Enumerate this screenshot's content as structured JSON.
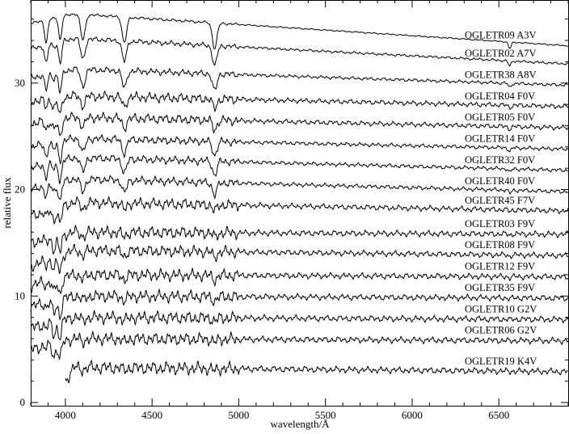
{
  "chart_data": {
    "type": "line",
    "title": "",
    "xlabel": "wavelength/Å",
    "ylabel": "relative flux",
    "xlim": [
      3800,
      6900
    ],
    "ylim": [
      -0.3,
      37.8
    ],
    "grid": false,
    "legend": "none",
    "x_major_ticks": [
      4000,
      4500,
      5000,
      5500,
      6000,
      6500
    ],
    "x_tick_labels": [
      "4000",
      "4500",
      "5000",
      "5500",
      "6000",
      "6500"
    ],
    "y_major_ticks": [
      0,
      10,
      20,
      30
    ],
    "y_tick_labels": [
      "0",
      "10",
      "20",
      "30"
    ],
    "absorption_lines_angstrom": [
      3889,
      3970,
      4101,
      4340,
      4861,
      6563
    ],
    "series": [
      {
        "label": "OGLETR09 A3V",
        "x_start": 3800,
        "x_end": 6900,
        "continuum_at_start": 35.6,
        "continuum_peak": 36.5,
        "continuum_at_end": 33.5,
        "line_strength": 2.4
      },
      {
        "label": "OGLETR02 A7V",
        "x_start": 3800,
        "x_end": 6900,
        "continuum_at_start": 33.2,
        "continuum_peak": 34.2,
        "continuum_at_end": 31.8,
        "line_strength": 1.9
      },
      {
        "label": "OGLETR38 A8V",
        "x_start": 3800,
        "x_end": 6900,
        "continuum_at_start": 30.5,
        "continuum_peak": 31.3,
        "continuum_at_end": 29.8,
        "line_strength": 1.6
      },
      {
        "label": "OGLETR04 F0V",
        "x_start": 3800,
        "x_end": 6900,
        "continuum_at_start": 28.3,
        "continuum_peak": 28.8,
        "continuum_at_end": 27.8,
        "line_strength": 0.9
      },
      {
        "label": "OGLETR05 F0V",
        "x_start": 3800,
        "x_end": 6900,
        "continuum_at_start": 26.2,
        "continuum_peak": 26.8,
        "continuum_at_end": 25.8,
        "line_strength": 0.9
      },
      {
        "label": "OGLETR14 F0V",
        "x_start": 3800,
        "x_end": 6900,
        "continuum_at_start": 24.0,
        "continuum_peak": 24.8,
        "continuum_at_end": 23.8,
        "line_strength": 1.3
      },
      {
        "label": "OGLETR32 F0V",
        "x_start": 3800,
        "x_end": 6900,
        "continuum_at_start": 22.0,
        "continuum_peak": 23.0,
        "continuum_at_end": 21.8,
        "line_strength": 1.3
      },
      {
        "label": "OGLETR40 F0V",
        "x_start": 3800,
        "x_end": 6900,
        "continuum_at_start": 20.0,
        "continuum_peak": 21.0,
        "continuum_at_end": 19.8,
        "line_strength": 1.2
      },
      {
        "label": "OGLETR45 F7V",
        "x_start": 3800,
        "x_end": 6900,
        "continuum_at_start": 17.5,
        "continuum_peak": 18.8,
        "continuum_at_end": 18.0,
        "line_strength": 0.6
      },
      {
        "label": "OGLETR03 F9V",
        "x_start": 3800,
        "x_end": 6900,
        "continuum_at_start": 15.0,
        "continuum_peak": 16.0,
        "continuum_at_end": 15.8,
        "line_strength": 0.4
      },
      {
        "label": "OGLETR08 F9V",
        "x_start": 3800,
        "x_end": 6900,
        "continuum_at_start": 12.8,
        "continuum_peak": 14.3,
        "continuum_at_end": 13.8,
        "line_strength": 0.5
      },
      {
        "label": "OGLETR12 F9V",
        "x_start": 3800,
        "x_end": 6900,
        "continuum_at_start": 11.0,
        "continuum_peak": 12.0,
        "continuum_at_end": 11.8,
        "line_strength": 0.4
      },
      {
        "label": "OGLETR35 F9V",
        "x_start": 3800,
        "x_end": 6900,
        "continuum_at_start": 9.0,
        "continuum_peak": 10.0,
        "continuum_at_end": 9.8,
        "line_strength": 0.4
      },
      {
        "label": "OGLETR10 G2V",
        "x_start": 3800,
        "x_end": 6900,
        "continuum_at_start": 7.0,
        "continuum_peak": 8.0,
        "continuum_at_end": 7.8,
        "line_strength": 0.3
      },
      {
        "label": "OGLETR06 G2V",
        "x_start": 3800,
        "x_end": 6900,
        "continuum_at_start": 5.0,
        "continuum_peak": 6.0,
        "continuum_at_end": 5.8,
        "line_strength": 0.3
      },
      {
        "label": "OGLETR19 K4V",
        "x_start": 4000,
        "x_end": 6900,
        "continuum_at_start": 2.0,
        "continuum_peak": 3.3,
        "continuum_at_end": 2.9,
        "line_strength": 0.2
      }
    ]
  }
}
